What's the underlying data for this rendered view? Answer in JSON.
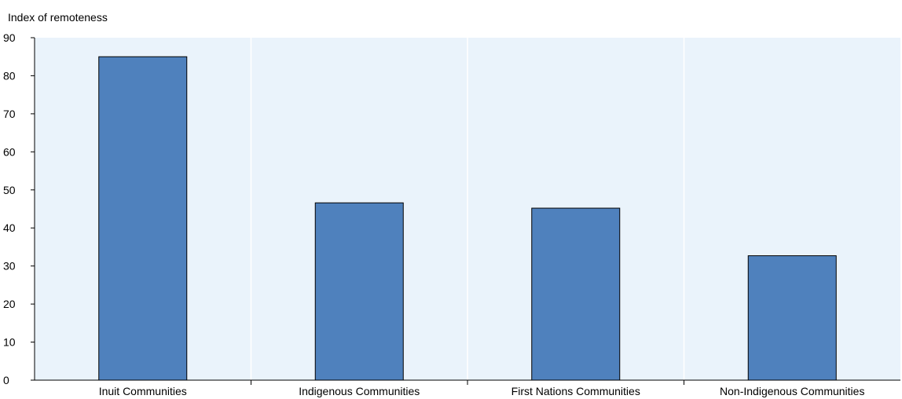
{
  "chart_data": {
    "type": "bar",
    "ylabel": "Index of remoteness",
    "categories": [
      "Inuit Communities",
      "Indigenous Communities",
      "First Nations Communities",
      "Non-Indigenous Communities"
    ],
    "values": [
      85,
      46.6,
      45.2,
      32.7
    ],
    "ylim": [
      0,
      90
    ],
    "yticks": [
      0,
      10,
      20,
      30,
      40,
      50,
      60,
      70,
      80,
      90
    ],
    "grid": "vertical-between-categories",
    "colors": {
      "bar": "#4f81bd",
      "bar_outline": "#000000",
      "plot_background": "#eaf3fb",
      "grid": "#ffffff"
    }
  }
}
